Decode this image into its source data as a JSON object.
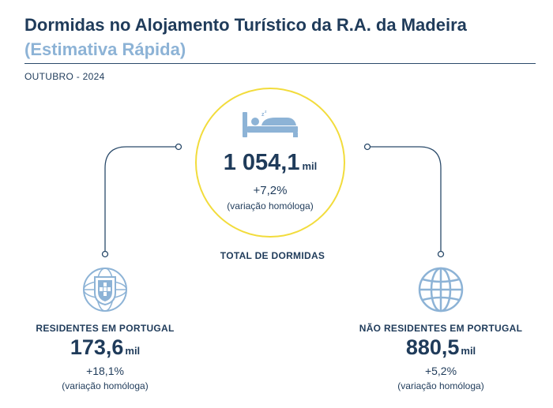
{
  "header": {
    "title": "Dormidas no Alojamento Turístico da R.A. da Madeira",
    "subtitle": "(Estimativa Rápida)",
    "period": "OUTUBRO - 2024"
  },
  "total": {
    "value": "1 054,1",
    "unit": "mil",
    "variation": "+7,2%",
    "variation_label": "(variação homóloga)",
    "caption": "TOTAL DE DORMIDAS",
    "icon": "bed-icon"
  },
  "residents": {
    "label": "RESIDENTES EM PORTUGAL",
    "value": "173,6",
    "unit": "mil",
    "variation": "+18,1%",
    "variation_label": "(variação homóloga)",
    "icon": "portugal-shield-icon"
  },
  "non_residents": {
    "label": "NÃO RESIDENTES EM PORTUGAL",
    "value": "880,5",
    "unit": "mil",
    "variation": "+5,2%",
    "variation_label": "(variação homóloga)",
    "icon": "globe-icon"
  },
  "colors": {
    "primary": "#1f3b5a",
    "accent_light": "#8db3d6",
    "circle_yellow": "#f2dc3c"
  }
}
